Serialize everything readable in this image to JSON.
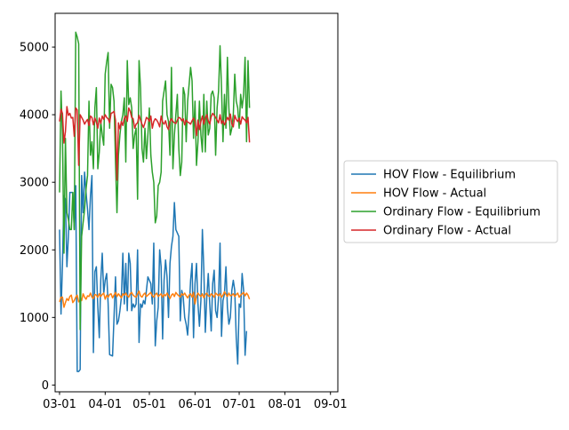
{
  "chart_data": {
    "type": "line",
    "title": "",
    "xlabel": "",
    "ylabel": "",
    "x_range": [
      "2023-02-26",
      "2023-09-06"
    ],
    "ylim": [
      -100,
      5500
    ],
    "grid": false,
    "legend_placement": "center-right (outside plot)",
    "x_tick_labels": [
      "03-01",
      "04-01",
      "05-01",
      "06-01",
      "07-01",
      "08-01",
      "09-01"
    ],
    "x_tick_dates": [
      "2023-03-01",
      "2023-04-01",
      "2023-05-01",
      "2023-06-01",
      "2023-07-01",
      "2023-08-01",
      "2023-09-01"
    ],
    "y_ticks": [
      0,
      1000,
      2000,
      3000,
      4000,
      5000
    ],
    "x_start": "2023-03-01",
    "x_step_days": 1,
    "series": [
      {
        "name": "HOV Flow - Equilibrium",
        "color": "#1f77b4",
        "values": [
          2300,
          1050,
          1800,
          2800,
          2750,
          1750,
          2200,
          2850,
          2850,
          2850,
          2300,
          2950,
          200,
          200,
          230,
          3100,
          2550,
          3150,
          2850,
          2600,
          2300,
          2800,
          3100,
          480,
          1680,
          1750,
          1150,
          700,
          1550,
          1950,
          1350,
          1550,
          1650,
          1200,
          450,
          440,
          430,
          1000,
          1600,
          900,
          950,
          1100,
          1300,
          1950,
          1200,
          1800,
          1100,
          1950,
          1800,
          1100,
          1200,
          1150,
          1200,
          2000,
          630,
          1200,
          1150,
          1250,
          1200,
          1400,
          1600,
          1550,
          1500,
          1200,
          2100,
          580,
          950,
          1150,
          2000,
          1750,
          680,
          1550,
          1850,
          1600,
          1000,
          1800,
          2050,
          2200,
          2700,
          2300,
          2250,
          2200,
          950,
          1400,
          1300,
          1000,
          900,
          740,
          1100,
          1550,
          1800,
          700,
          1500,
          1800,
          1200,
          870,
          1250,
          2300,
          1700,
          780,
          1300,
          1650,
          1200,
          800,
          1500,
          1700,
          1100,
          1000,
          1300,
          2100,
          720,
          1250,
          1350,
          1750,
          1150,
          900,
          1000,
          1400,
          1550,
          1400,
          700,
          310,
          1200,
          1150,
          1650,
          1400,
          440,
          800
        ]
      },
      {
        "name": "HOV Flow - Actual",
        "color": "#ff7f0e",
        "values": [
          1230,
          1300,
          1300,
          1150,
          1220,
          1280,
          1250,
          1310,
          1330,
          1220,
          1250,
          1300,
          1330,
          1230,
          1260,
          1250,
          1350,
          1300,
          1270,
          1320,
          1310,
          1360,
          1300,
          1280,
          1340,
          1330,
          1300,
          1350,
          1310,
          1340,
          1360,
          1270,
          1330,
          1300,
          1340,
          1350,
          1290,
          1330,
          1370,
          1310,
          1350,
          1320,
          1290,
          1350,
          1330,
          1360,
          1320,
          1300,
          1350,
          1370,
          1330,
          1310,
          1300,
          1350,
          1390,
          1320,
          1300,
          1340,
          1360,
          1310,
          1330,
          1350,
          1370,
          1320,
          1300,
          1340,
          1360,
          1310,
          1330,
          1350,
          1300,
          1340,
          1320,
          1360,
          1320,
          1280,
          1330,
          1350,
          1310,
          1370,
          1340,
          1320,
          1300,
          1350,
          1330,
          1360,
          1320,
          1290,
          1330,
          1350,
          1300,
          1370,
          1200,
          1320,
          1360,
          1330,
          1310,
          1350,
          1290,
          1340,
          1360,
          1320,
          1310,
          1350,
          1330,
          1300,
          1360,
          1340,
          1320,
          1350,
          1300,
          1330,
          1380,
          1340,
          1310,
          1360,
          1320,
          1330,
          1350,
          1310,
          1340,
          1360,
          1300,
          1330,
          1350,
          1370,
          1320,
          1360,
          1330,
          1270
        ]
      },
      {
        "name": "Ordinary Flow - Equilibrium",
        "color": "#2ca02c",
        "values": [
          2850,
          4350,
          3700,
          1950,
          3650,
          2550,
          2450,
          2300,
          2300,
          2850,
          2300,
          5220,
          5150,
          5050,
          820,
          2200,
          2400,
          2600,
          2900,
          3100,
          4200,
          3400,
          3600,
          3200,
          4100,
          4400,
          3200,
          3450,
          3900,
          3700,
          3550,
          4600,
          4780,
          4920,
          3800,
          4450,
          4400,
          4200,
          3300,
          2550,
          3400,
          3700,
          3900,
          4000,
          4250,
          3300,
          4800,
          4150,
          4250,
          4100,
          3500,
          3700,
          3800,
          2750,
          4800,
          4400,
          3500,
          3300,
          3800,
          3350,
          3700,
          4100,
          3400,
          3150,
          3000,
          2400,
          2500,
          2950,
          3000,
          3150,
          4200,
          4350,
          4500,
          4000,
          3900,
          3400,
          4700,
          3200,
          3700,
          4000,
          4300,
          3500,
          3100,
          3300,
          4400,
          4300,
          3600,
          4200,
          4450,
          4700,
          4500,
          3650,
          4200,
          3250,
          3600,
          4200,
          3700,
          3450,
          4300,
          3450,
          4200,
          3700,
          3800,
          4300,
          4350,
          4250,
          3400,
          4100,
          4350,
          5020,
          4400,
          3600,
          4300,
          3800,
          4850,
          4100,
          3700,
          3800,
          4000,
          4600,
          4200,
          4100,
          3800,
          4300,
          4100,
          4300,
          4850,
          3600,
          4800,
          4100
        ]
      },
      {
        "name": "Ordinary Flow - Actual",
        "color": "#d62728",
        "values": [
          3900,
          4080,
          4020,
          3580,
          3750,
          4120,
          3990,
          4020,
          3950,
          3960,
          3680,
          4100,
          4070,
          3250,
          4000,
          3960,
          3920,
          3860,
          3900,
          3930,
          3840,
          3980,
          3960,
          3850,
          3950,
          3890,
          3800,
          3950,
          3870,
          3980,
          3930,
          4000,
          3960,
          3940,
          3880,
          4020,
          4030,
          4050,
          3920,
          3030,
          3880,
          3790,
          3900,
          3840,
          3950,
          3980,
          3900,
          4100,
          4050,
          3960,
          3940,
          3800,
          3860,
          3880,
          3990,
          3920,
          3860,
          3810,
          3880,
          3960,
          3940,
          3900,
          3980,
          3800,
          3900,
          3940,
          3920,
          3880,
          3820,
          3980,
          3890,
          3860,
          3910,
          3820,
          3780,
          3900,
          3940,
          3900,
          3880,
          3870,
          3920,
          3960,
          3950,
          3910,
          3940,
          3850,
          3920,
          3890,
          3880,
          3860,
          3910,
          3950,
          3900,
          3690,
          3920,
          3780,
          3900,
          3980,
          3860,
          3950,
          4000,
          3910,
          3860,
          3970,
          4020,
          3990,
          3960,
          3920,
          3880,
          4000,
          3870,
          3910,
          3850,
          3900,
          3960,
          3920,
          4010,
          3860,
          3820,
          3990,
          3930,
          3900,
          3950,
          3860,
          3970,
          3940,
          3920,
          3880,
          3960,
          3590
        ]
      }
    ]
  }
}
